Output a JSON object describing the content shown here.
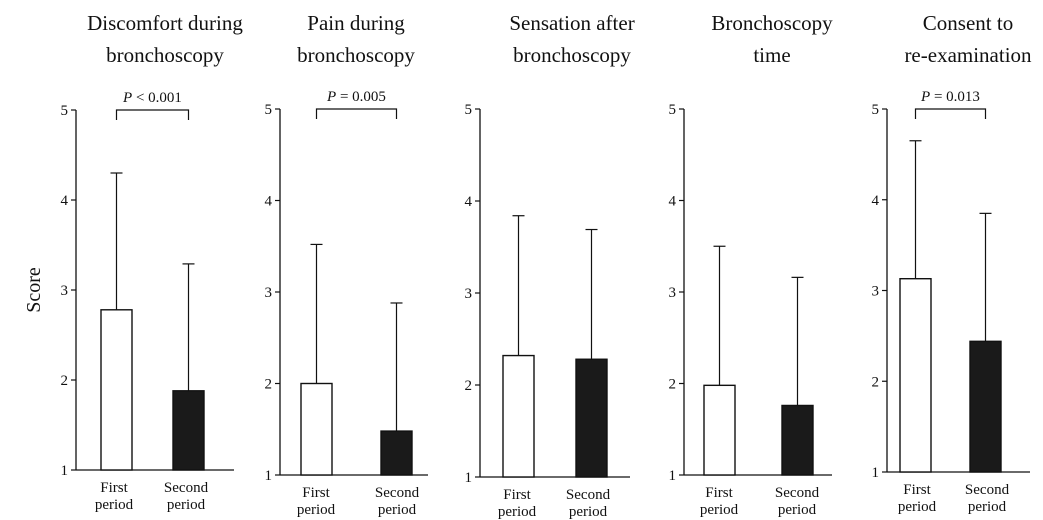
{
  "y_axis_label": "Score",
  "colors": {
    "first_period": "#ffffff",
    "second_period": "#1a1a1a",
    "stroke": "#111111"
  },
  "chart_data": [
    {
      "type": "bar",
      "title_lines": [
        "Discomfort during",
        "bronchoscopy"
      ],
      "categories": [
        [
          "First",
          "period"
        ],
        [
          "Second",
          "period"
        ]
      ],
      "values": [
        2.78,
        1.88
      ],
      "error_upper": [
        4.3,
        3.29
      ],
      "ylim": [
        1,
        5
      ],
      "yticks": [
        "1",
        "2",
        "3",
        "4",
        "5"
      ],
      "significance": {
        "italic": "P",
        "rest": " < 0.001"
      }
    },
    {
      "type": "bar",
      "title_lines": [
        "Pain during",
        "bronchoscopy"
      ],
      "categories": [
        [
          "First",
          "period"
        ],
        [
          "Second",
          "period"
        ]
      ],
      "values": [
        2.0,
        1.48
      ],
      "error_upper": [
        3.52,
        2.88
      ],
      "ylim": [
        1,
        5
      ],
      "yticks": [
        "1",
        "2",
        "3",
        "4",
        "5"
      ],
      "significance": {
        "italic": "P",
        "rest": " = 0.005"
      }
    },
    {
      "type": "bar",
      "title_lines": [
        "Sensation after",
        "bronchoscopy"
      ],
      "categories": [
        [
          "First",
          "period"
        ],
        [
          "Second",
          "period"
        ]
      ],
      "values": [
        2.32,
        2.28
      ],
      "error_upper": [
        3.84,
        3.69
      ],
      "ylim": [
        1,
        5
      ],
      "yticks": [
        "1",
        "2",
        "3",
        "4",
        "5"
      ]
    },
    {
      "type": "bar",
      "title_lines": [
        "Bronchoscopy",
        "time"
      ],
      "categories": [
        [
          "First",
          "period"
        ],
        [
          "Second",
          "period"
        ]
      ],
      "values": [
        1.98,
        1.76
      ],
      "error_upper": [
        3.5,
        3.16
      ],
      "ylim": [
        1,
        5
      ],
      "yticks": [
        "1",
        "2",
        "3",
        "4",
        "5"
      ]
    },
    {
      "type": "bar",
      "title_lines": [
        "Consent to",
        "re-examination"
      ],
      "categories": [
        [
          "First",
          "period"
        ],
        [
          "Second",
          "period"
        ]
      ],
      "values": [
        3.13,
        2.44
      ],
      "error_upper": [
        4.65,
        3.85
      ],
      "ylim": [
        1,
        5
      ],
      "yticks": [
        "1",
        "2",
        "3",
        "4",
        "5"
      ],
      "significance": {
        "italic": "P",
        "rest": " = 0.013"
      }
    }
  ]
}
